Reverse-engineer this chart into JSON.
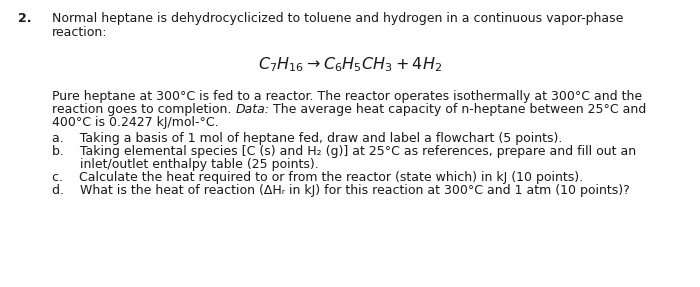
{
  "background_color": "#ffffff",
  "figsize": [
    7.0,
    2.87
  ],
  "dpi": 100,
  "font_size_main": 9.0,
  "font_size_eq": 11.5,
  "text_color": "#1a1a1a",
  "number": "2.",
  "title_line1": "Normal heptane is dehydrocyclicized to toluene and hydrogen in a continuous vapor-phase",
  "title_line2": "reaction:",
  "equation": "$C_7H_{16} \\rightarrow C_6H_5CH_3 + 4H_2$",
  "para_line1": "Pure heptane at 300°C is fed to a reactor. The reactor operates isothermally at 300°C and the",
  "para_line2_a": "reaction goes to completion. ",
  "para_line2_b_italic": "Data:",
  "para_line2_c": " The average heat capacity of n-heptane between 25°C and",
  "para_line3": "400°C is 0.2427 kJ/mol-°C.",
  "item_a": "a.    Taking a basis of 1 mol of heptane fed, draw and label a flowchart (5 points).",
  "item_b1": "b.    Taking elemental species [C (s) and H₂ (g)] at 25°C as references, prepare and fill out an",
  "item_b2": "       inlet/outlet enthalpy table (25 points).",
  "item_c": "c.    Calculate the heat required to or from the reactor (state which) in kJ (10 points).",
  "item_d": "d.    What is the heat of reaction (ΔHᵣ in kJ) for this reaction at 300°C and 1 atm (10 points)?"
}
